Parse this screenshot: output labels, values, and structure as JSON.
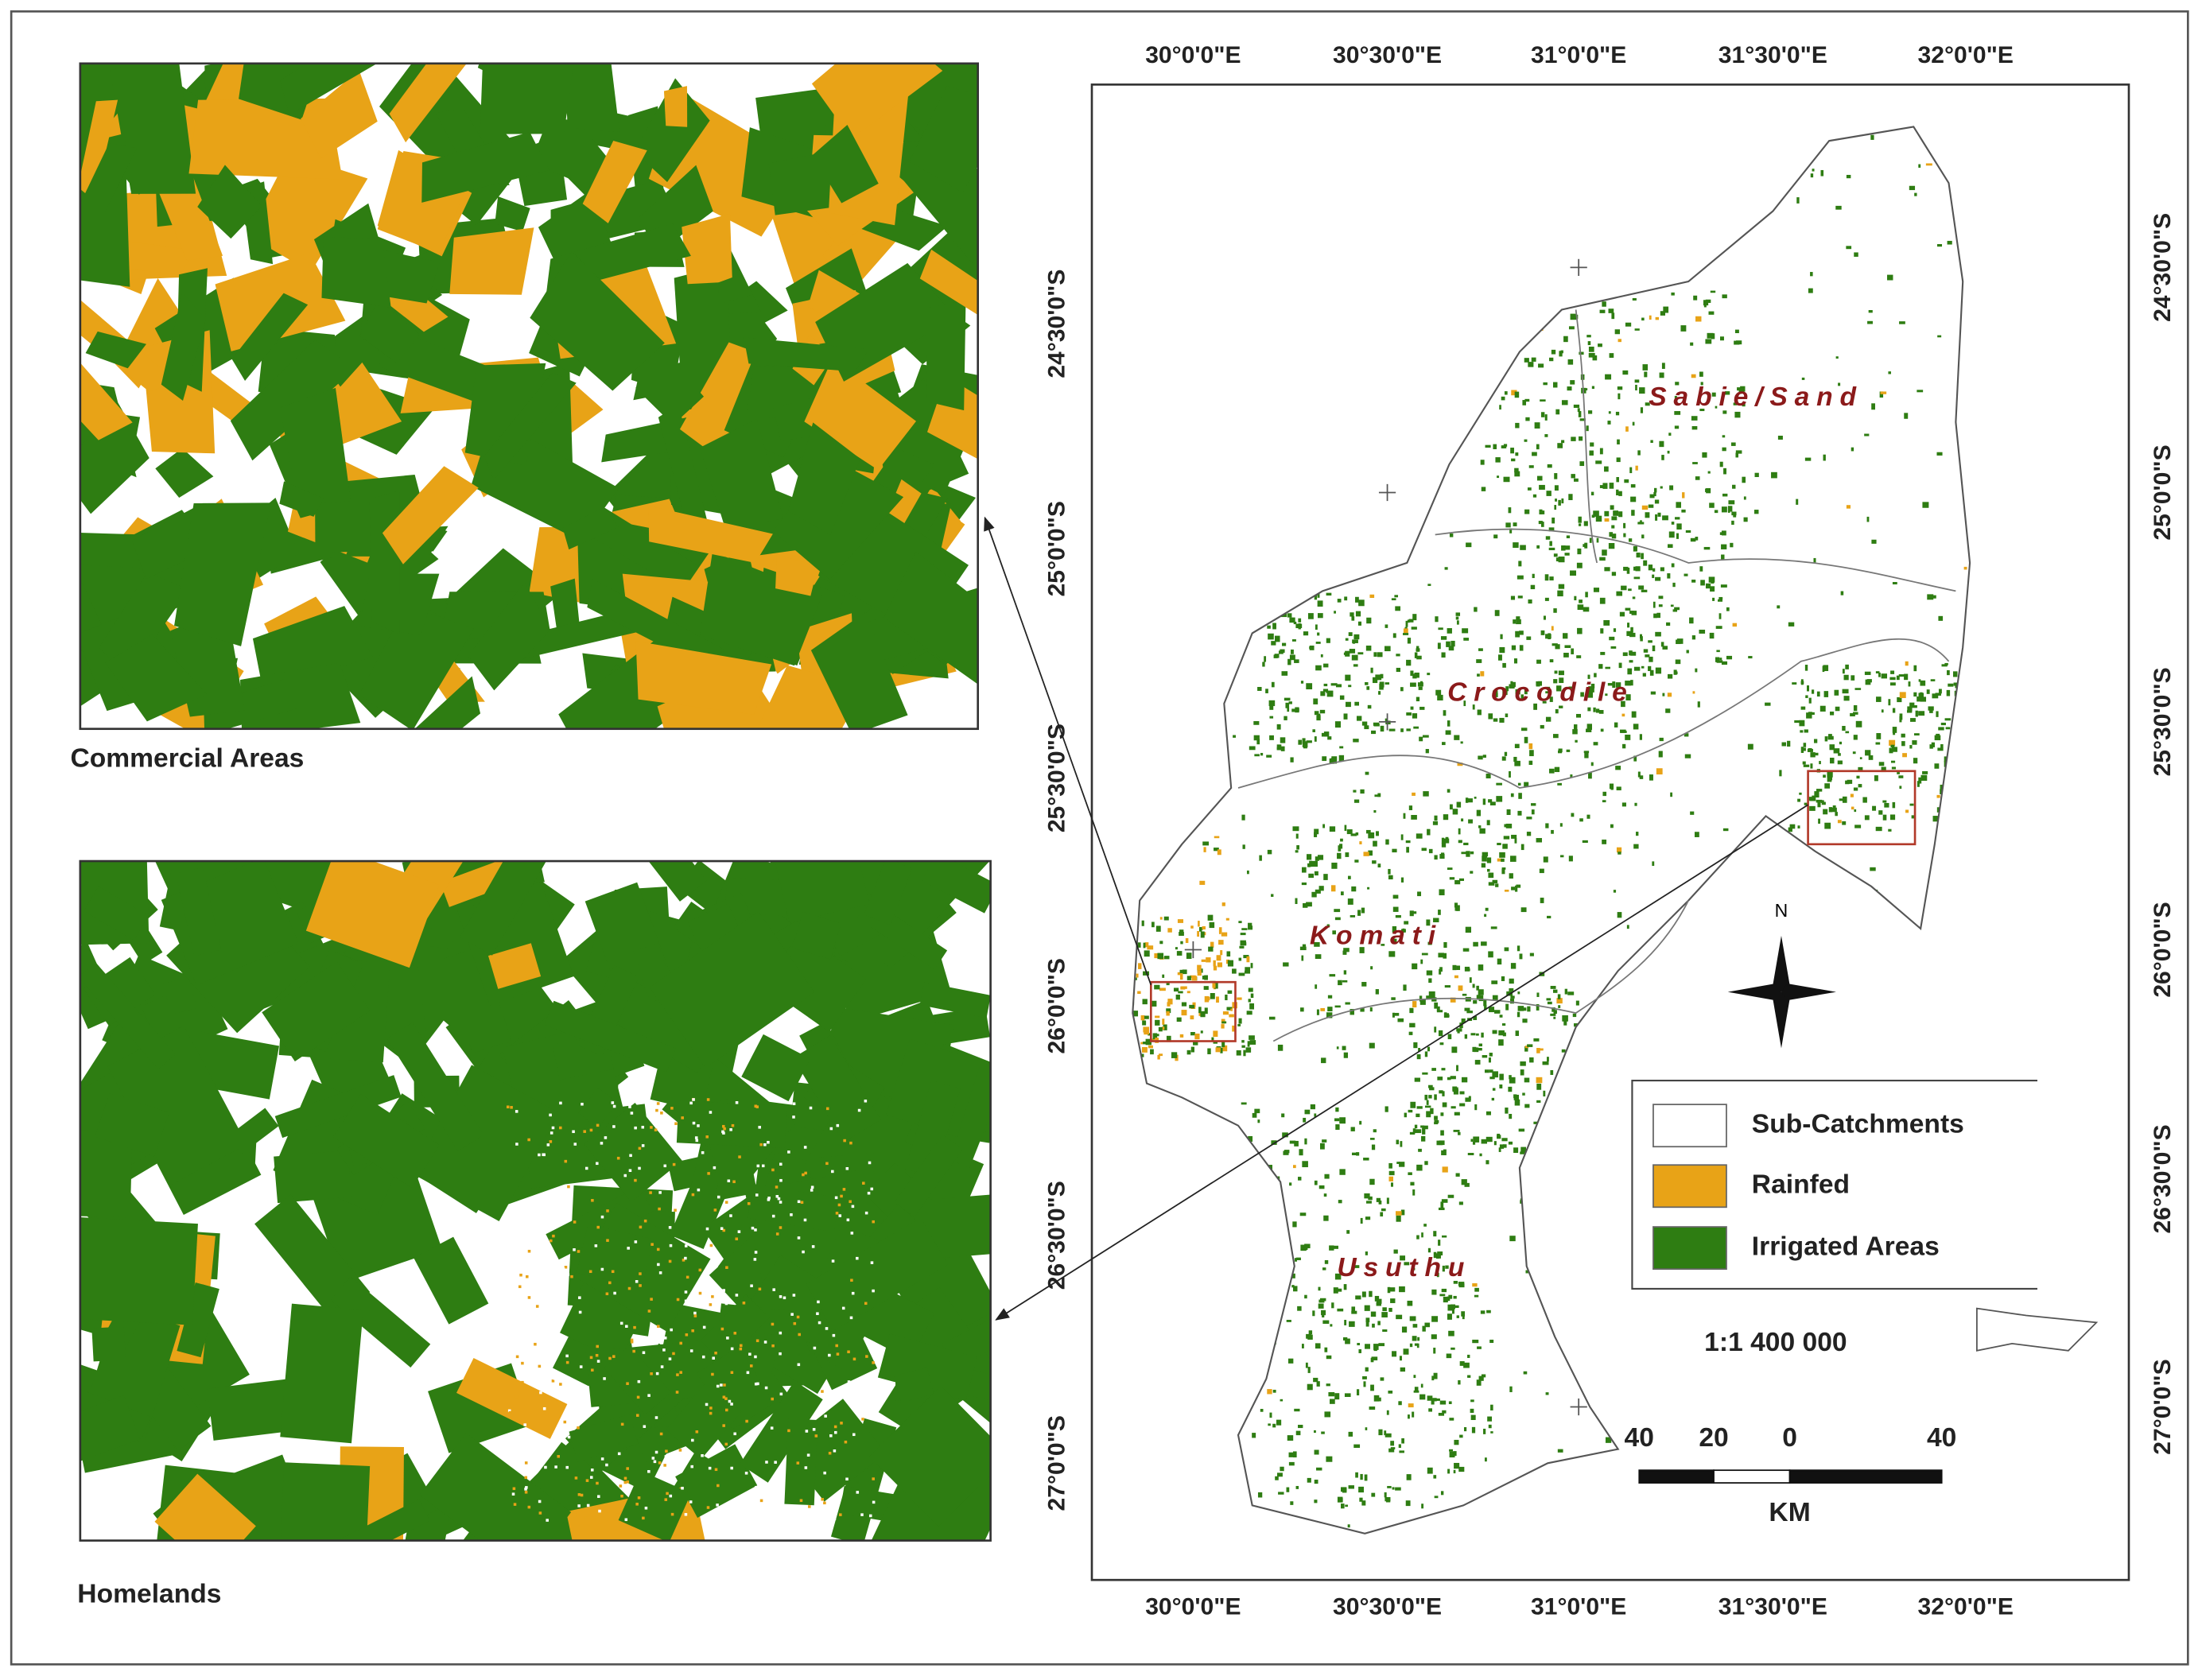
{
  "insets": [
    {
      "label": "Commercial Areas"
    },
    {
      "label": "Homelands"
    }
  ],
  "map": {
    "top_labels": [
      "30°0'0\"E",
      "30°30'0\"E",
      "31°0'0\"E",
      "31°30'0\"E",
      "32°0'0\"E"
    ],
    "bottom_labels": [
      "30°0'0\"E",
      "30°30'0\"E",
      "31°0'0\"E",
      "31°30'0\"E",
      "32°0'0\"E"
    ],
    "left_labels": [
      "24°30'0\"S",
      "25°0'0\"S",
      "25°30'0\"S",
      "26°0'0\"S",
      "26°30'0\"S",
      "27°0'0\"S"
    ],
    "right_labels": [
      "24°30'0\"S",
      "25°0'0\"S",
      "25°30'0\"S",
      "26°0'0\"S",
      "26°30'0\"S",
      "27°0'0\"S"
    ],
    "regions": [
      "Sabie/Sand",
      "Crocodile",
      "Komati",
      "Usuthu"
    ],
    "north": "N",
    "scale_text": "1:1 400 000",
    "scale_bar_labels": [
      "40",
      "20",
      "0",
      "40"
    ],
    "scale_unit": "KM"
  },
  "legend": {
    "items": [
      "Sub-Catchments",
      "Rainfed",
      "Irrigated Areas"
    ]
  }
}
